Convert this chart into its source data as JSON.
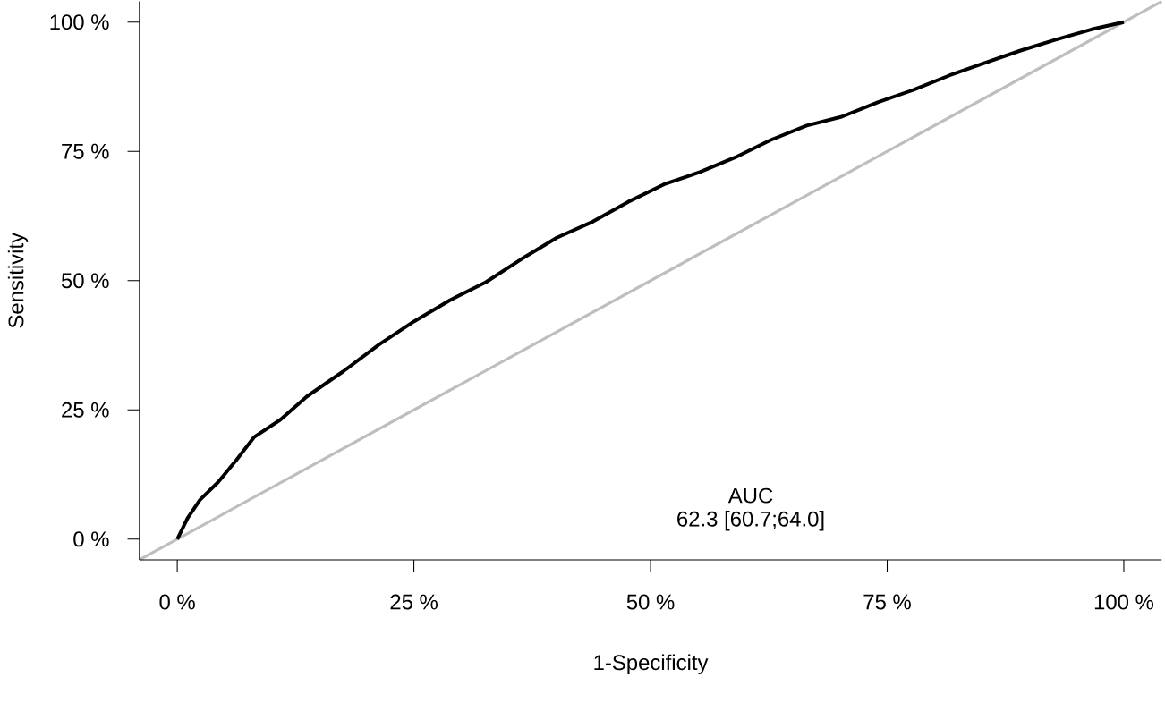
{
  "chart_data": {
    "type": "line",
    "xlabel": "1-Specificity",
    "ylabel": "Sensitivity",
    "xlim": [
      -4,
      104
    ],
    "ylim": [
      -4,
      104
    ],
    "xticks": [
      {
        "value": 0,
        "label": "0 %"
      },
      {
        "value": 25,
        "label": "25 %"
      },
      {
        "value": 50,
        "label": "50 %"
      },
      {
        "value": 75,
        "label": "75 %"
      },
      {
        "value": 100,
        "label": "100 %"
      }
    ],
    "yticks": [
      {
        "value": 0,
        "label": "0 %"
      },
      {
        "value": 25,
        "label": "25 %"
      },
      {
        "value": 50,
        "label": "50 %"
      },
      {
        "value": 75,
        "label": "75 %"
      },
      {
        "value": 100,
        "label": "100 %"
      }
    ],
    "annotations": [
      "AUC",
      "62.3 [60.7;64.0]"
    ],
    "series": [
      {
        "color": "#bebebe",
        "x": [
          -4,
          104
        ],
        "values": [
          -4,
          104
        ]
      },
      {
        "color": "#000000",
        "x": [
          0,
          1.1,
          2.4,
          4.3,
          6.2,
          8.1,
          10.9,
          13.7,
          17.5,
          21.3,
          25.0,
          28.8,
          32.6,
          36.3,
          40.1,
          43.9,
          47.6,
          51.4,
          55.2,
          58.9,
          62.7,
          66.5,
          70.2,
          74.0,
          77.8,
          81.6,
          85.3,
          89.1,
          92.8,
          96.6,
          100
        ],
        "values": [
          0,
          4.1,
          7.6,
          11,
          15.2,
          19.7,
          23.1,
          27.6,
          32.4,
          37.6,
          42.1,
          46.2,
          49.7,
          54.1,
          58.3,
          61.4,
          65.2,
          68.6,
          71.0,
          73.8,
          77.2,
          80.0,
          81.7,
          84.5,
          86.9,
          89.7,
          92.1,
          94.5,
          96.6,
          98.6,
          100
        ]
      }
    ]
  }
}
